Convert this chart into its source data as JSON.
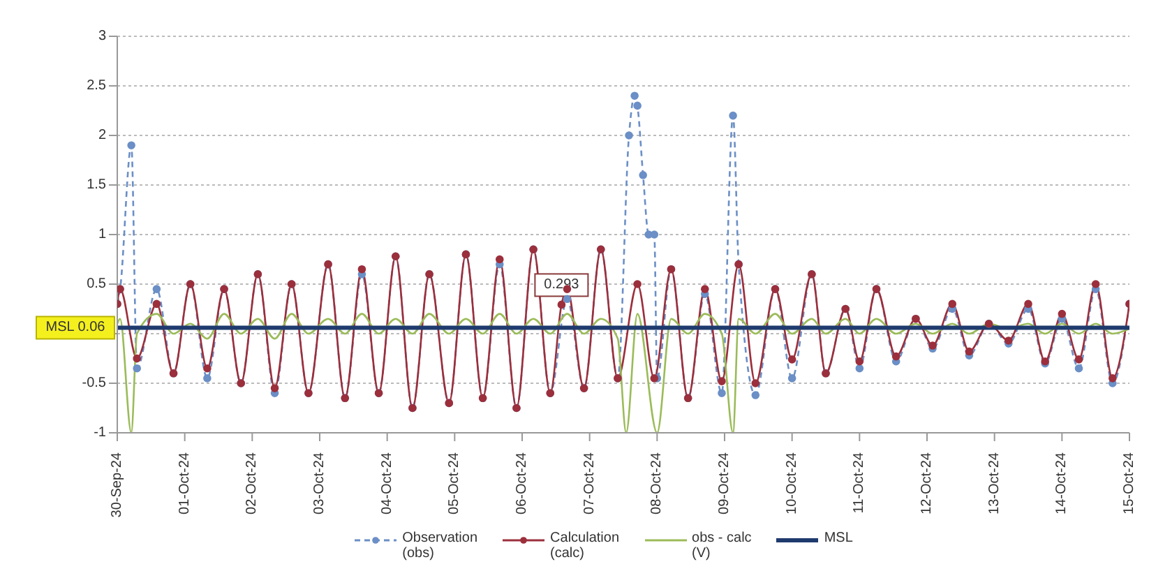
{
  "chart_data": {
    "type": "line",
    "xlim": [
      "--09-30",
      "--10-15"
    ],
    "xticks": [
      {
        "value": "--09-30",
        "label": "30-Sep-24"
      },
      {
        "value": "--10-01",
        "label": "01-Oct-24"
      },
      {
        "value": "--10-02",
        "label": "02-Oct-24"
      },
      {
        "value": "--10-03",
        "label": "03-Oct-24"
      },
      {
        "value": "--10-04",
        "label": "04-Oct-24"
      },
      {
        "value": "--10-05",
        "label": "05-Oct-24"
      },
      {
        "value": "--10-06",
        "label": "06-Oct-24"
      },
      {
        "value": "--10-07",
        "label": "07-Oct-24"
      },
      {
        "value": "--10-08",
        "label": "08-Oct-24"
      },
      {
        "value": "--10-09",
        "label": "09-Oct-24"
      },
      {
        "value": "--10-10",
        "label": "10-Oct-24"
      },
      {
        "value": "--10-11",
        "label": "11-Oct-24"
      },
      {
        "value": "--10-12",
        "label": "12-Oct-24"
      },
      {
        "value": "--10-13",
        "label": "13-Oct-24"
      },
      {
        "value": "--10-14",
        "label": "14-Oct-24"
      },
      {
        "value": "--10-15",
        "label": "15-Oct-24"
      }
    ],
    "ylim": [
      -1,
      3
    ],
    "yticks": [
      -1,
      -0.5,
      {
        "value": 0,
        "label": null
      },
      0.5,
      1,
      1.5,
      2,
      2.5,
      3
    ],
    "grid": "y",
    "legend": "bottom",
    "series": [
      {
        "name": "Observation (obs)",
        "color": "#6b8fc6",
        "line_style": "dashed",
        "marker": "circle",
        "x": [
          "--09-30T00:00",
          "--09-30T01:00",
          "--09-30T05:00",
          "--09-30T07:00",
          "--09-30T14:00",
          "--09-30T20:00",
          "--10-01T02:00",
          "--10-01T08:00",
          "--10-01T14:00",
          "--10-01T20:00",
          "--10-02T02:00",
          "--10-02T08:00",
          "--10-02T14:00",
          "--10-02T20:00",
          "--10-03T03:00",
          "--10-03T09:00",
          "--10-03T15:00",
          "--10-03T21:00",
          "--10-04T03:00",
          "--10-04T09:00",
          "--10-04T15:00",
          "--10-04T22:00",
          "--10-05T04:00",
          "--10-05T10:00",
          "--10-05T16:00",
          "--10-05T22:00",
          "--10-06T04:00",
          "--10-06T10:00",
          "--10-06T16:00",
          "--10-06T22:00",
          "--10-07T04:00",
          "--10-07T10:00",
          "--10-07T14:00",
          "--10-07T16:00",
          "--10-07T17:00",
          "--10-07T19:00",
          "--10-07T21:00",
          "--10-07T23:00",
          "--10-08T00:00",
          "--10-08T05:00",
          "--10-08T11:00",
          "--10-08T17:00",
          "--10-08T23:00",
          "--10-09T03:00",
          "--10-09T05:00",
          "--10-09T11:00",
          "--10-09T18:00",
          "--10-10T00:00",
          "--10-10T07:00",
          "--10-10T12:00",
          "--10-10T19:00",
          "--10-11T00:00",
          "--10-11T06:00",
          "--10-11T13:00",
          "--10-11T20:00",
          "--10-12T02:00",
          "--10-12T09:00",
          "--10-12T15:00",
          "--10-12T22:00",
          "--10-13T05:00",
          "--10-13T12:00",
          "--10-13T18:00",
          "--10-14T00:00",
          "--10-14T06:00",
          "--10-14T12:00",
          "--10-14T18:00",
          "--10-15T00:00"
        ],
        "values": [
          0.3,
          0.45,
          1.9,
          -0.35,
          0.45,
          -0.4,
          0.5,
          -0.45,
          0.45,
          -0.5,
          0.6,
          -0.6,
          0.5,
          -0.6,
          0.7,
          -0.65,
          0.6,
          -0.6,
          0.78,
          -0.75,
          0.6,
          -0.7,
          0.8,
          -0.65,
          0.7,
          -0.75,
          0.85,
          -0.6,
          0.35,
          -0.55,
          0.85,
          -0.45,
          2.0,
          2.4,
          2.3,
          1.6,
          1.0,
          1.0,
          -0.45,
          0.65,
          -0.65,
          0.4,
          -0.6,
          2.2,
          0.7,
          -0.62,
          0.45,
          -0.45,
          0.6,
          -0.4,
          0.25,
          -0.35,
          0.45,
          -0.28,
          0.15,
          -0.15,
          0.25,
          -0.22,
          0.1,
          -0.1,
          0.25,
          -0.3,
          0.15,
          -0.35,
          0.45,
          -0.5,
          0.3
        ]
      },
      {
        "name": "Calculation (calc)",
        "color": "#9c2f3c",
        "line_style": "solid",
        "marker": "circle",
        "x": [
          "--09-30T00:00",
          "--09-30T01:00",
          "--09-30T07:00",
          "--09-30T14:00",
          "--09-30T20:00",
          "--10-01T02:00",
          "--10-01T08:00",
          "--10-01T14:00",
          "--10-01T20:00",
          "--10-02T02:00",
          "--10-02T08:00",
          "--10-02T14:00",
          "--10-02T20:00",
          "--10-03T03:00",
          "--10-03T09:00",
          "--10-03T15:00",
          "--10-03T21:00",
          "--10-04T03:00",
          "--10-04T09:00",
          "--10-04T15:00",
          "--10-04T22:00",
          "--10-05T04:00",
          "--10-05T10:00",
          "--10-05T16:00",
          "--10-05T22:00",
          "--10-06T04:00",
          "--10-06T10:00",
          "--10-06T14:00",
          "--10-06T16:00",
          "--10-06T22:00",
          "--10-07T04:00",
          "--10-07T10:00",
          "--10-07T17:00",
          "--10-07T23:00",
          "--10-08T05:00",
          "--10-08T11:00",
          "--10-08T17:00",
          "--10-08T23:00",
          "--10-09T05:00",
          "--10-09T11:00",
          "--10-09T18:00",
          "--10-10T00:00",
          "--10-10T07:00",
          "--10-10T12:00",
          "--10-10T19:00",
          "--10-11T00:00",
          "--10-11T06:00",
          "--10-11T13:00",
          "--10-11T20:00",
          "--10-12T02:00",
          "--10-12T09:00",
          "--10-12T15:00",
          "--10-12T22:00",
          "--10-13T05:00",
          "--10-13T12:00",
          "--10-13T18:00",
          "--10-14T00:00",
          "--10-14T06:00",
          "--10-14T12:00",
          "--10-14T18:00",
          "--10-15T00:00"
        ],
        "values": [
          0.3,
          0.45,
          -0.25,
          0.3,
          -0.4,
          0.5,
          -0.35,
          0.45,
          -0.5,
          0.6,
          -0.55,
          0.5,
          -0.6,
          0.7,
          -0.65,
          0.65,
          -0.6,
          0.78,
          -0.75,
          0.6,
          -0.7,
          0.8,
          -0.65,
          0.75,
          -0.75,
          0.85,
          -0.6,
          0.293,
          0.45,
          -0.55,
          0.85,
          -0.45,
          0.5,
          -0.45,
          0.65,
          -0.65,
          0.45,
          -0.48,
          0.7,
          -0.5,
          0.45,
          -0.26,
          0.6,
          -0.4,
          0.25,
          -0.28,
          0.45,
          -0.23,
          0.15,
          -0.12,
          0.3,
          -0.18,
          0.1,
          -0.07,
          0.3,
          -0.28,
          0.2,
          -0.26,
          0.5,
          -0.45,
          0.3
        ]
      },
      {
        "name": "obs - calc (V)",
        "color": "#9bbb59",
        "line_style": "solid",
        "marker": "none",
        "x": [
          "--09-30T00:00",
          "--09-30T01:00",
          "--09-30T05:00",
          "--09-30T07:00",
          "--09-30T14:00",
          "--09-30T20:00",
          "--10-01T02:00",
          "--10-01T08:00",
          "--10-01T14:00",
          "--10-01T20:00",
          "--10-02T02:00",
          "--10-02T08:00",
          "--10-02T14:00",
          "--10-02T20:00",
          "--10-03T03:00",
          "--10-03T09:00",
          "--10-03T15:00",
          "--10-03T21:00",
          "--10-04T03:00",
          "--10-04T09:00",
          "--10-04T15:00",
          "--10-04T22:00",
          "--10-05T04:00",
          "--10-05T10:00",
          "--10-05T16:00",
          "--10-05T22:00",
          "--10-06T04:00",
          "--10-06T10:00",
          "--10-06T16:00",
          "--10-06T22:00",
          "--10-07T04:00",
          "--10-07T10:00",
          "--10-07T13:00",
          "--10-07T17:00",
          "--10-08T00:00",
          "--10-08T05:00",
          "--10-08T11:00",
          "--10-08T17:00",
          "--10-08T23:00",
          "--10-09T03:00",
          "--10-09T05:00",
          "--10-09T11:00",
          "--10-09T18:00",
          "--10-10T00:00",
          "--10-10T07:00",
          "--10-10T12:00",
          "--10-10T19:00",
          "--10-11T00:00",
          "--10-11T06:00",
          "--10-11T13:00",
          "--10-11T20:00",
          "--10-12T02:00",
          "--10-12T09:00",
          "--10-12T15:00",
          "--10-12T22:00",
          "--10-13T05:00",
          "--10-13T12:00",
          "--10-13T18:00",
          "--10-14T00:00",
          "--10-14T06:00",
          "--10-14T12:00",
          "--10-14T18:00",
          "--10-15T00:00"
        ],
        "values": [
          0.1,
          0.15,
          -1,
          0.0,
          0.2,
          0.0,
          0.1,
          -0.05,
          0.2,
          0.0,
          0.15,
          -0.05,
          0.2,
          0.0,
          0.15,
          0.0,
          0.2,
          0.0,
          0.15,
          0.0,
          0.2,
          0.0,
          0.15,
          0.0,
          0.2,
          0.0,
          0.15,
          0.0,
          0.2,
          0.0,
          0.15,
          -0.05,
          -1,
          0.2,
          -1,
          0.15,
          0.0,
          0.2,
          0.0,
          -1,
          0.15,
          0.0,
          0.2,
          0.0,
          0.15,
          0.0,
          0.15,
          0.0,
          0.15,
          0.0,
          0.1,
          0.0,
          0.1,
          0.0,
          0.1,
          0.05,
          0.1,
          0.0,
          0.1,
          0.0,
          0.1,
          0.0,
          0.05
        ]
      },
      {
        "name": "MSL",
        "color": "#1f3b6e",
        "line_style": "solid",
        "marker": "none",
        "x": [
          "--09-30T00:00",
          "--10-15T00:00"
        ],
        "values": [
          0.06,
          0.06
        ]
      }
    ],
    "annotations": [
      {
        "text": "MSL 0.06",
        "x": "--09-30T00:00",
        "y": 0.06
      },
      {
        "text": "0.293",
        "x": "--10-06T14:00",
        "y": 0.293
      }
    ]
  }
}
